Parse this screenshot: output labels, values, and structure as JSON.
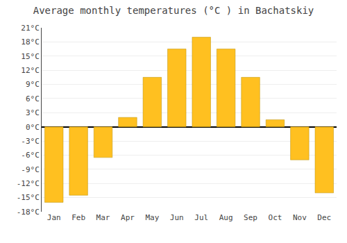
{
  "chart_data": {
    "type": "bar",
    "title": "Average monthly temperatures (°C ) in Bachatskiy",
    "categories": [
      "Jan",
      "Feb",
      "Mar",
      "Apr",
      "May",
      "Jun",
      "Jul",
      "Aug",
      "Sep",
      "Oct",
      "Nov",
      "Dec"
    ],
    "values": [
      -16,
      -14.5,
      -6.5,
      2,
      10.5,
      16.5,
      19,
      16.5,
      10.5,
      1.5,
      -7,
      -14
    ],
    "color": "#FFC020",
    "ylim": [
      -18,
      21
    ],
    "yticks": [
      {
        "value": -18,
        "label": "-18°C"
      },
      {
        "value": -15,
        "label": "-15°C"
      },
      {
        "value": -12,
        "label": "-12°C"
      },
      {
        "value": -9,
        "label": "-9°C"
      },
      {
        "value": -6,
        "label": "-6°C"
      },
      {
        "value": -3,
        "label": "-3°C"
      },
      {
        "value": 0,
        "label": "0°C"
      },
      {
        "value": 3,
        "label": "3°C"
      },
      {
        "value": 6,
        "label": "6°C"
      },
      {
        "value": 9,
        "label": "9°C"
      },
      {
        "value": 12,
        "label": "12°C"
      },
      {
        "value": 15,
        "label": "15°C"
      },
      {
        "value": 18,
        "label": "18°C"
      },
      {
        "value": 21,
        "label": "21°C"
      }
    ],
    "grid": true
  }
}
